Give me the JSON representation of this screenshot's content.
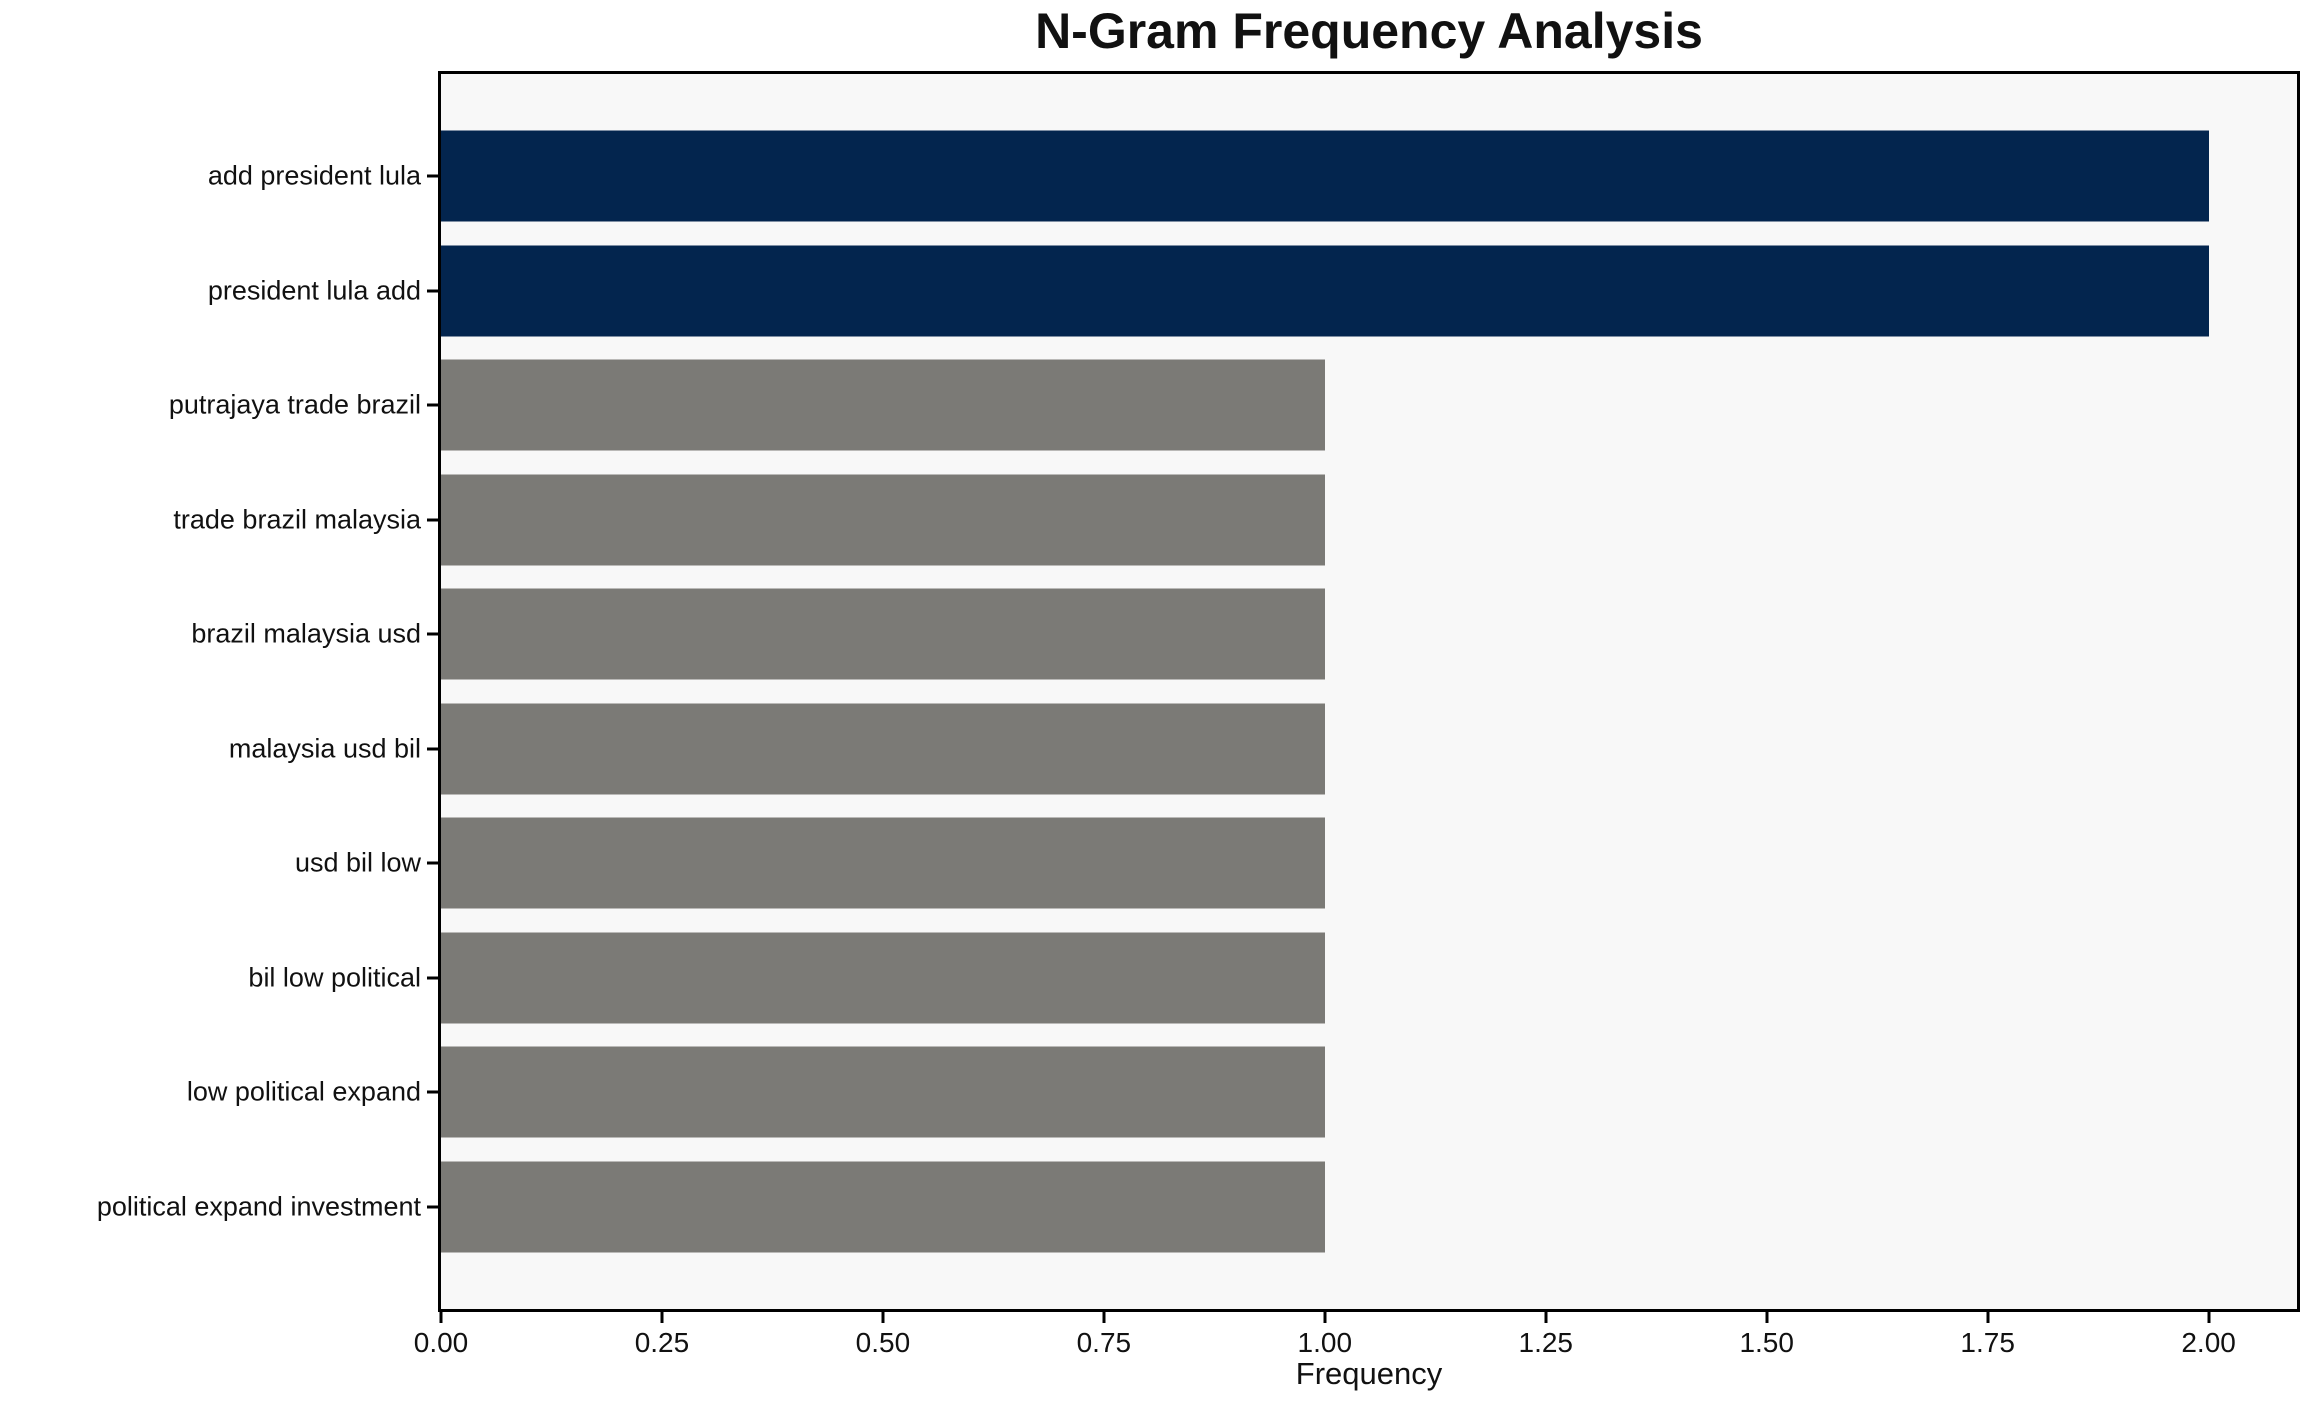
{
  "chart_data": {
    "type": "bar",
    "orientation": "horizontal",
    "title": "N-Gram Frequency Analysis",
    "xlabel": "Frequency",
    "ylabel": "",
    "categories": [
      "add president lula",
      "president lula add",
      "putrajaya trade brazil",
      "trade brazil malaysia",
      "brazil malaysia usd",
      "malaysia usd bil",
      "usd bil low",
      "bil low political",
      "low political expand",
      "political expand investment"
    ],
    "values": [
      2,
      2,
      1,
      1,
      1,
      1,
      1,
      1,
      1,
      1
    ],
    "xlim": [
      0,
      2.1
    ],
    "xticks": {
      "values": [
        0,
        0.25,
        0.5,
        0.75,
        1.0,
        1.25,
        1.5,
        1.75,
        2.0
      ],
      "labels": [
        "0.00",
        "0.25",
        "0.50",
        "0.75",
        "1.00",
        "1.25",
        "1.50",
        "1.75",
        "2.00"
      ]
    },
    "grid": false,
    "legend": null,
    "colors": {
      "bar_palette": [
        "#03254e",
        "#03254e",
        "#7b7a76",
        "#7b7a76",
        "#7b7a76",
        "#7b7a76",
        "#7b7a76",
        "#7b7a76",
        "#7b7a76",
        "#7b7a76"
      ],
      "highlight_bar": "#03254e",
      "default_bar": "#7b7a76",
      "plot_background": "#f8f8f8",
      "figure_background": "#ffffff",
      "axis": "#000000",
      "text": "#111111"
    }
  }
}
